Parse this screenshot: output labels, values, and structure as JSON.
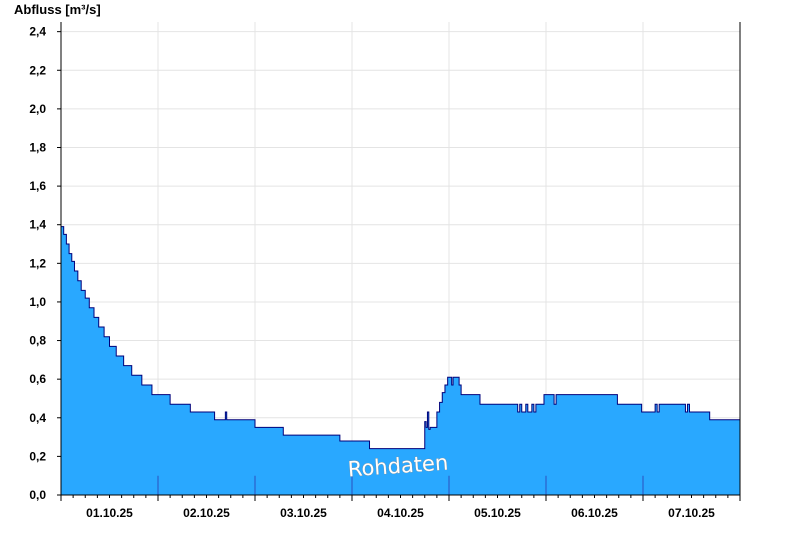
{
  "chart_data": {
    "type": "area",
    "title": "",
    "ylabel": "Abfluss [m³/s]",
    "xlabel": "",
    "ylim": [
      0,
      2.45
    ],
    "yticks": [
      0.0,
      0.2,
      0.4,
      0.6,
      0.8,
      1.0,
      1.2,
      1.4,
      1.6,
      1.8,
      2.0,
      2.2,
      2.4
    ],
    "ytick_labels": [
      "0,0",
      "0,2",
      "0,4",
      "0,6",
      "0,8",
      "1,0",
      "1,2",
      "1,4",
      "1,6",
      "1,8",
      "2,0",
      "2,2",
      "2,4"
    ],
    "xlim": [
      "2025-10-01T00:00",
      "2025-10-08T00:00"
    ],
    "day_boundaries": [
      "2025-10-02T00:00",
      "2025-10-03T00:00",
      "2025-10-04T00:00",
      "2025-10-05T00:00",
      "2025-10-06T00:00",
      "2025-10-07T00:00"
    ],
    "xtick_labels": [
      "01.10.25",
      "02.10.25",
      "03.10.25",
      "04.10.25",
      "05.10.25",
      "06.10.25",
      "07.10.25"
    ],
    "annotation": "Rohdaten",
    "grid": true,
    "fill_color": "#29a8ff",
    "line_color": "#00007a",
    "series": [
      {
        "x": [
          "2025-10-01T00:00",
          "2025-10-01T00:40",
          "2025-10-01T01:20",
          "2025-10-01T02:00",
          "2025-10-01T02:40",
          "2025-10-01T03:20",
          "2025-10-01T04:10",
          "2025-10-01T05:00",
          "2025-10-01T06:00",
          "2025-10-01T07:00",
          "2025-10-01T08:10",
          "2025-10-01T09:20",
          "2025-10-01T10:40",
          "2025-10-01T12:00",
          "2025-10-01T13:40",
          "2025-10-01T15:30",
          "2025-10-01T17:30",
          "2025-10-01T20:00",
          "2025-10-01T22:30",
          "2025-10-02T03:00",
          "2025-10-02T08:00",
          "2025-10-02T14:00",
          "2025-10-02T16:40",
          "2025-10-02T17:00",
          "2025-10-02T17:20",
          "2025-10-03T00:00",
          "2025-10-03T07:00",
          "2025-10-03T21:00",
          "2025-10-04T04:20",
          "2025-10-04T17:40",
          "2025-10-04T18:00",
          "2025-10-04T18:20",
          "2025-10-04T18:40",
          "2025-10-04T19:00",
          "2025-10-04T19:20",
          "2025-10-04T20:00",
          "2025-10-04T21:00",
          "2025-10-04T21:40",
          "2025-10-04T22:20",
          "2025-10-04T23:00",
          "2025-10-04T23:40",
          "2025-10-05T00:20",
          "2025-10-05T00:40",
          "2025-10-05T01:00",
          "2025-10-05T02:30",
          "2025-10-05T03:00",
          "2025-10-05T03:30",
          "2025-10-05T05:00",
          "2025-10-05T07:40",
          "2025-10-05T12:40",
          "2025-10-05T17:00",
          "2025-10-05T17:30",
          "2025-10-05T18:00",
          "2025-10-05T19:00",
          "2025-10-05T19:30",
          "2025-10-05T20:30",
          "2025-10-05T21:00",
          "2025-10-05T21:30",
          "2025-10-05T22:30",
          "2025-10-05T23:30",
          "2025-10-06T00:30",
          "2025-10-06T02:00",
          "2025-10-06T02:30",
          "2025-10-06T03:00",
          "2025-10-06T04:30",
          "2025-10-06T05:30",
          "2025-10-06T12:00",
          "2025-10-06T17:40",
          "2025-10-06T23:40",
          "2025-10-07T02:30",
          "2025-10-07T03:00",
          "2025-10-07T03:30",
          "2025-10-07T04:00",
          "2025-10-07T10:00",
          "2025-10-07T10:30",
          "2025-10-07T11:00",
          "2025-10-07T11:30",
          "2025-10-07T12:00",
          "2025-10-07T16:30",
          "2025-10-08T00:00"
        ],
        "y": [
          1.39,
          1.35,
          1.3,
          1.25,
          1.21,
          1.16,
          1.11,
          1.06,
          1.02,
          0.97,
          0.92,
          0.87,
          0.82,
          0.77,
          0.72,
          0.67,
          0.62,
          0.57,
          0.52,
          0.47,
          0.43,
          0.39,
          0.43,
          0.39,
          0.39,
          0.35,
          0.31,
          0.28,
          0.24,
          0.24,
          0.38,
          0.35,
          0.43,
          0.34,
          0.35,
          0.35,
          0.43,
          0.48,
          0.53,
          0.57,
          0.61,
          0.61,
          0.57,
          0.61,
          0.57,
          0.52,
          0.52,
          0.52,
          0.47,
          0.47,
          0.43,
          0.47,
          0.43,
          0.47,
          0.43,
          0.47,
          0.43,
          0.47,
          0.47,
          0.52,
          0.52,
          0.47,
          0.52,
          0.52,
          0.52,
          0.52,
          0.52,
          0.47,
          0.43,
          0.43,
          0.47,
          0.43,
          0.47,
          0.47,
          0.43,
          0.47,
          0.43,
          0.43,
          0.39,
          0.39
        ]
      }
    ]
  }
}
